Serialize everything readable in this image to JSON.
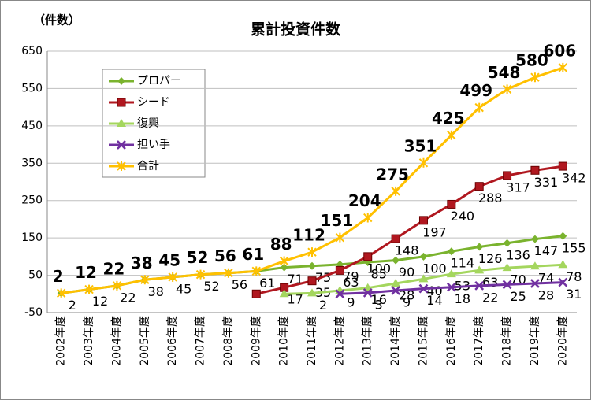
{
  "chart_data": {
    "type": "line",
    "title": "累計投資件数",
    "y_label": "（件数）",
    "categories": [
      "2002年度",
      "2003年度",
      "2004年度",
      "2005年度",
      "2006年度",
      "2007年度",
      "2008年度",
      "2009年度",
      "2010年度",
      "2011年度",
      "2012年度",
      "2013年度",
      "2014年度",
      "2015年度",
      "2016年度",
      "2017年度",
      "2018年度",
      "2019年度",
      "2020年度"
    ],
    "ylim": [
      -50,
      650
    ],
    "yticks": [
      -50,
      50,
      150,
      250,
      350,
      450,
      550,
      650
    ],
    "grid": true,
    "series": [
      {
        "name": "プロパー",
        "color": "#7ab32e",
        "marker": "diamond",
        "values": [
          2,
          12,
          22,
          38,
          45,
          52,
          56,
          61,
          71,
          75,
          79,
          85,
          90,
          100,
          114,
          126,
          136,
          147,
          155
        ]
      },
      {
        "name": "シード",
        "color": "#b0171f",
        "marker": "square",
        "values": [
          null,
          null,
          null,
          null,
          null,
          null,
          null,
          0,
          17,
          35,
          63,
          100,
          148,
          197,
          240,
          288,
          317,
          331,
          342
        ]
      },
      {
        "name": "復興",
        "color": "#a4d65e",
        "marker": "triangle",
        "values": [
          null,
          null,
          null,
          null,
          null,
          null,
          null,
          null,
          0,
          2,
          9,
          16,
          28,
          40,
          53,
          63,
          70,
          74,
          78
        ]
      },
      {
        "name": "担い手",
        "color": "#7030a0",
        "marker": "x",
        "values": [
          null,
          null,
          null,
          null,
          null,
          null,
          null,
          null,
          null,
          null,
          0,
          3,
          9,
          14,
          18,
          22,
          25,
          28,
          31
        ]
      },
      {
        "name": "合計",
        "color": "#ffc000",
        "marker": "star",
        "values": [
          2,
          12,
          22,
          38,
          45,
          52,
          56,
          61,
          88,
          112,
          151,
          204,
          275,
          351,
          425,
          499,
          548,
          580,
          606
        ]
      }
    ]
  }
}
